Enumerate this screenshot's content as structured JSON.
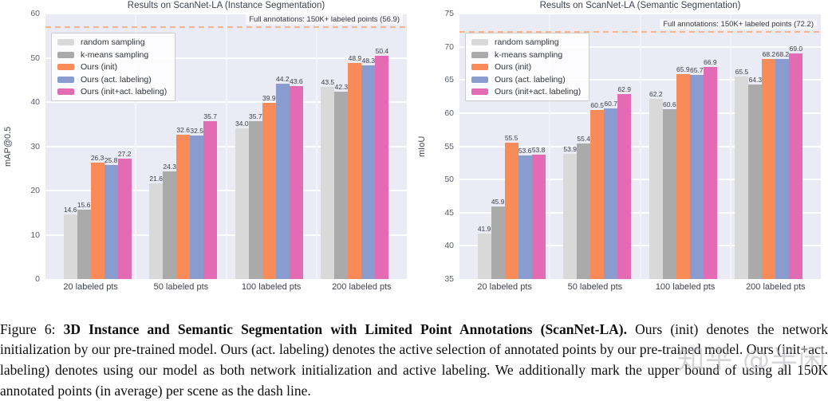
{
  "chart_data": [
    {
      "type": "bar",
      "title": "Results on ScanNet-LA (Instance Segmentation)",
      "ylabel": "mAP@0.5",
      "categories": [
        "20 labeled pts",
        "50 labeled pts",
        "100 labeled pts",
        "200 labeled pts"
      ],
      "series": [
        {
          "name": "random sampling",
          "color": "#d9d9d9",
          "values": [
            14.6,
            21.6,
            34.0,
            43.5
          ]
        },
        {
          "name": "k-means sampling",
          "color": "#aaaaaa",
          "values": [
            15.6,
            24.3,
            35.7,
            42.3
          ]
        },
        {
          "name": "Ours (init)",
          "color": "#f88b57",
          "values": [
            26.3,
            32.6,
            39.9,
            48.9
          ]
        },
        {
          "name": "Ours (act. labeling)",
          "color": "#8a9ccf",
          "values": [
            25.8,
            32.5,
            44.2,
            48.3
          ]
        },
        {
          "name": "Ours (init+act. labeling)",
          "color": "#e26bb4",
          "values": [
            27.2,
            35.7,
            43.6,
            50.4
          ]
        }
      ],
      "ylim": [
        0,
        60
      ],
      "yticks": [
        0,
        10,
        20,
        30,
        40,
        50,
        60
      ],
      "hline": {
        "value": 56.9,
        "label": "Full annotations: 150K+ labeled points (56.9)"
      },
      "legend_position": "upper left",
      "grid": true
    },
    {
      "type": "bar",
      "title": "Results on ScanNet-LA (Semantic Segmentation)",
      "ylabel": "mIoU",
      "categories": [
        "20 labeled pts",
        "50 labeled pts",
        "100 labeled pts",
        "200 labeled pts"
      ],
      "series": [
        {
          "name": "random sampling",
          "color": "#d9d9d9",
          "values": [
            41.9,
            53.9,
            62.2,
            65.5
          ]
        },
        {
          "name": "k-means sampling",
          "color": "#aaaaaa",
          "values": [
            45.9,
            55.4,
            60.6,
            64.3
          ]
        },
        {
          "name": "Ours (init)",
          "color": "#f88b57",
          "values": [
            55.5,
            60.5,
            65.9,
            68.2
          ]
        },
        {
          "name": "Ours (act. labeling)",
          "color": "#8a9ccf",
          "values": [
            53.6,
            60.7,
            65.7,
            68.2
          ]
        },
        {
          "name": "Ours (init+act. labeling)",
          "color": "#e26bb4",
          "values": [
            53.8,
            62.9,
            66.9,
            69.0
          ]
        }
      ],
      "ylim": [
        35,
        75
      ],
      "yticks": [
        35,
        40,
        45,
        50,
        55,
        60,
        65,
        70,
        75
      ],
      "hline": {
        "value": 72.2,
        "label": "Full annotations: 150K+ labeled points (72.2)"
      },
      "legend_position": "upper left",
      "grid": true
    }
  ],
  "caption": {
    "prefix": "Figure 6: ",
    "bold": "3D Instance and Semantic Segmentation with Limited Point Annotations (ScanNet-LA).",
    "body": " Ours (init) denotes the network initialization by our pre-trained model. Ours (act. labeling) denotes the active selection of annotated points by our pre-trained model. Ours (init+act. labeling) denotes using our model as both network initialization and active labeling. We additionally mark the upper bound of using all 150K annotated points (in average) per scene as the dash line."
  },
  "watermark": {
    "text": "知乎 @半闲"
  },
  "colors": {
    "plot_background": "#eaebf4",
    "gridline": "#ffffff",
    "dash_line": "#f2b68e",
    "bar_random": "#d9d9d9",
    "bar_kmeans": "#aaaaaa",
    "bar_ours_init": "#f88b57",
    "bar_ours_act": "#8a9ccf",
    "bar_ours_init_act": "#e26bb4"
  }
}
